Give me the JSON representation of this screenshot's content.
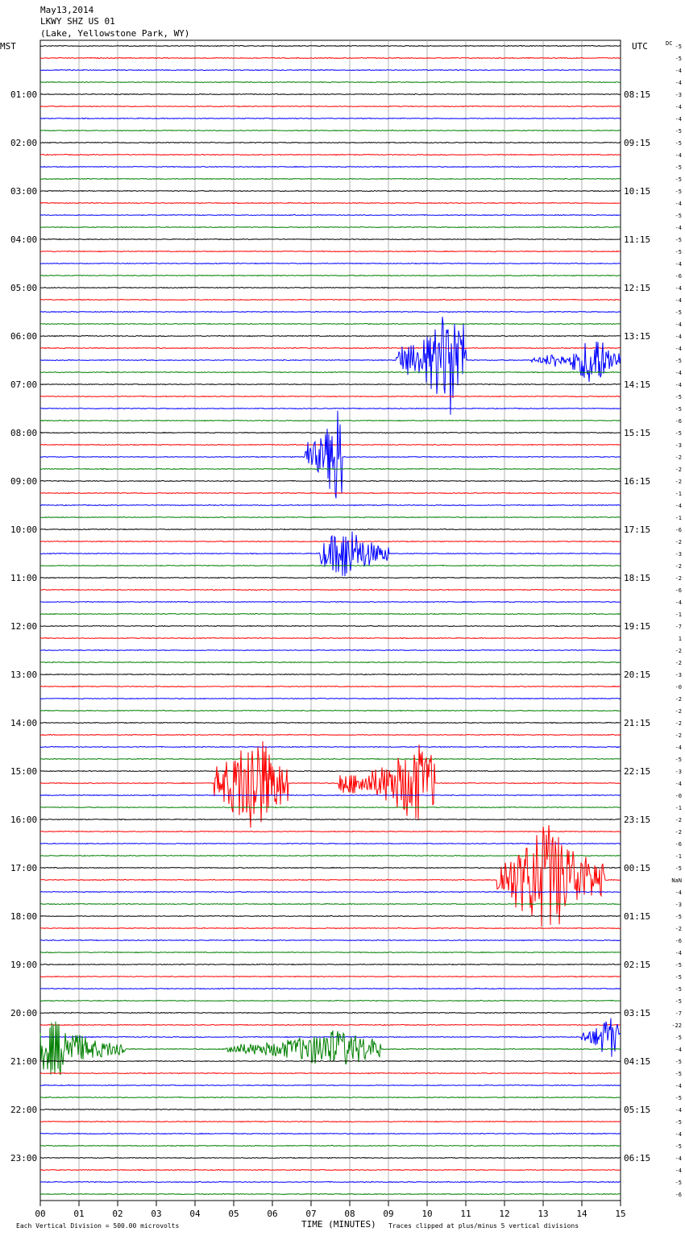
{
  "header": {
    "date": "May13,2014",
    "station": "LKWY SHZ US 01",
    "location": "(Lake, Yellowstone Park, WY)"
  },
  "left_timezone": "MST",
  "right_timezone": "UTC",
  "dc_label": "DC",
  "footer": {
    "scale_note": "Each Vertical Division =  500.00 microvolts",
    "xlabel": "TIME (MINUTES)",
    "clip_note": "Traces clipped at plus/minus 5 vertical divisions"
  },
  "colors": {
    "traces": [
      "#000000",
      "#ff0000",
      "#0000ff",
      "#007f00"
    ],
    "grid": "#a0a0a0"
  },
  "chart_data": {
    "type": "line",
    "x_range_minutes": [
      0,
      15
    ],
    "x_ticks": [
      "00",
      "01",
      "02",
      "03",
      "04",
      "05",
      "06",
      "07",
      "08",
      "09",
      "10",
      "11",
      "12",
      "13",
      "14",
      "15"
    ],
    "trace_minutes": 15,
    "trace_count": 96,
    "left_hour_labels": [
      "01:00",
      "02:00",
      "03:00",
      "04:00",
      "05:00",
      "06:00",
      "07:00",
      "08:00",
      "09:00",
      "10:00",
      "11:00",
      "12:00",
      "13:00",
      "14:00",
      "15:00",
      "16:00",
      "17:00",
      "18:00",
      "19:00",
      "20:00",
      "21:00",
      "22:00",
      "23:00"
    ],
    "right_hour_labels": [
      "08:15",
      "09:15",
      "10:15",
      "11:15",
      "12:15",
      "13:15",
      "14:15",
      "15:15",
      "16:15",
      "17:15",
      "18:15",
      "19:15",
      "20:15",
      "21:15",
      "22:15",
      "23:15",
      "00:15",
      "01:15",
      "02:15",
      "03:15",
      "04:15",
      "05:15",
      "06:15"
    ],
    "dc_offsets": [
      "-5",
      "-5",
      "-4",
      "-4",
      "-3",
      "-4",
      "-4",
      "-5",
      "-5",
      "-4",
      "-5",
      "-5",
      "-5",
      "-4",
      "-5",
      "-4",
      "-5",
      "-5",
      "-4",
      "-6",
      "-4",
      "-4",
      "-5",
      "-4",
      "-4",
      "-4",
      "-5",
      "-4",
      "-4",
      "-5",
      "-5",
      "-6",
      "-5",
      "-3",
      "-2",
      "-2",
      "-2",
      "-1",
      "-4",
      "-1",
      "-6",
      "-2",
      "-3",
      "-2",
      "-2",
      "-6",
      "-4",
      "-1",
      "-7",
      "1",
      "-2",
      "-2",
      "-3",
      "-0",
      "-2",
      "-2",
      "-2",
      "-2",
      "-4",
      "-5",
      "-3",
      "-4",
      "-0",
      "-1",
      "-2",
      "-2",
      "-6",
      "-1",
      "-5",
      "NaN",
      "-4",
      "-3",
      "-5",
      "-2",
      "-6",
      "-4",
      "-5",
      "-5",
      "-5",
      "-5",
      "-7",
      "-22",
      "-5",
      "-4",
      "-5",
      "-5",
      "-4",
      "-5",
      "-4",
      "-5",
      "-4",
      "-5",
      "-4",
      "-4",
      "-5",
      "-6"
    ],
    "events": [
      {
        "trace": 26,
        "start_min": 9.2,
        "end_min": 11.0,
        "peak_min": 10.6,
        "amp_divisions": 5
      },
      {
        "trace": 26,
        "start_min": 12.7,
        "end_min": 13.7,
        "peak_min": 13.3,
        "amp_divisions": 0.7
      },
      {
        "trace": 26,
        "start_min": 13.7,
        "end_min": 15.0,
        "peak_min": 14.3,
        "amp_divisions": 2.5
      },
      {
        "trace": 34,
        "start_min": 6.8,
        "end_min": 7.8,
        "peak_min": 7.7,
        "amp_divisions": 5
      },
      {
        "trace": 42,
        "start_min": 7.2,
        "end_min": 9.0,
        "peak_min": 7.9,
        "amp_divisions": 2.5
      },
      {
        "trace": 61,
        "start_min": 4.5,
        "end_min": 6.4,
        "peak_min": 5.5,
        "amp_divisions": 5
      },
      {
        "trace": 61,
        "start_min": 7.7,
        "end_min": 10.2,
        "peak_min": 9.7,
        "amp_divisions": 3.5
      },
      {
        "trace": 69,
        "start_min": 11.8,
        "end_min": 14.6,
        "peak_min": 13.1,
        "amp_divisions": 5
      },
      {
        "trace": 82,
        "start_min": 14.0,
        "end_min": 15.0,
        "peak_min": 14.7,
        "amp_divisions": 2
      },
      {
        "trace": 83,
        "start_min": 0.0,
        "end_min": 2.2,
        "peak_min": 0.4,
        "amp_divisions": 2.5
      },
      {
        "trace": 83,
        "start_min": 4.8,
        "end_min": 8.8,
        "peak_min": 7.6,
        "amp_divisions": 1.7
      }
    ]
  }
}
